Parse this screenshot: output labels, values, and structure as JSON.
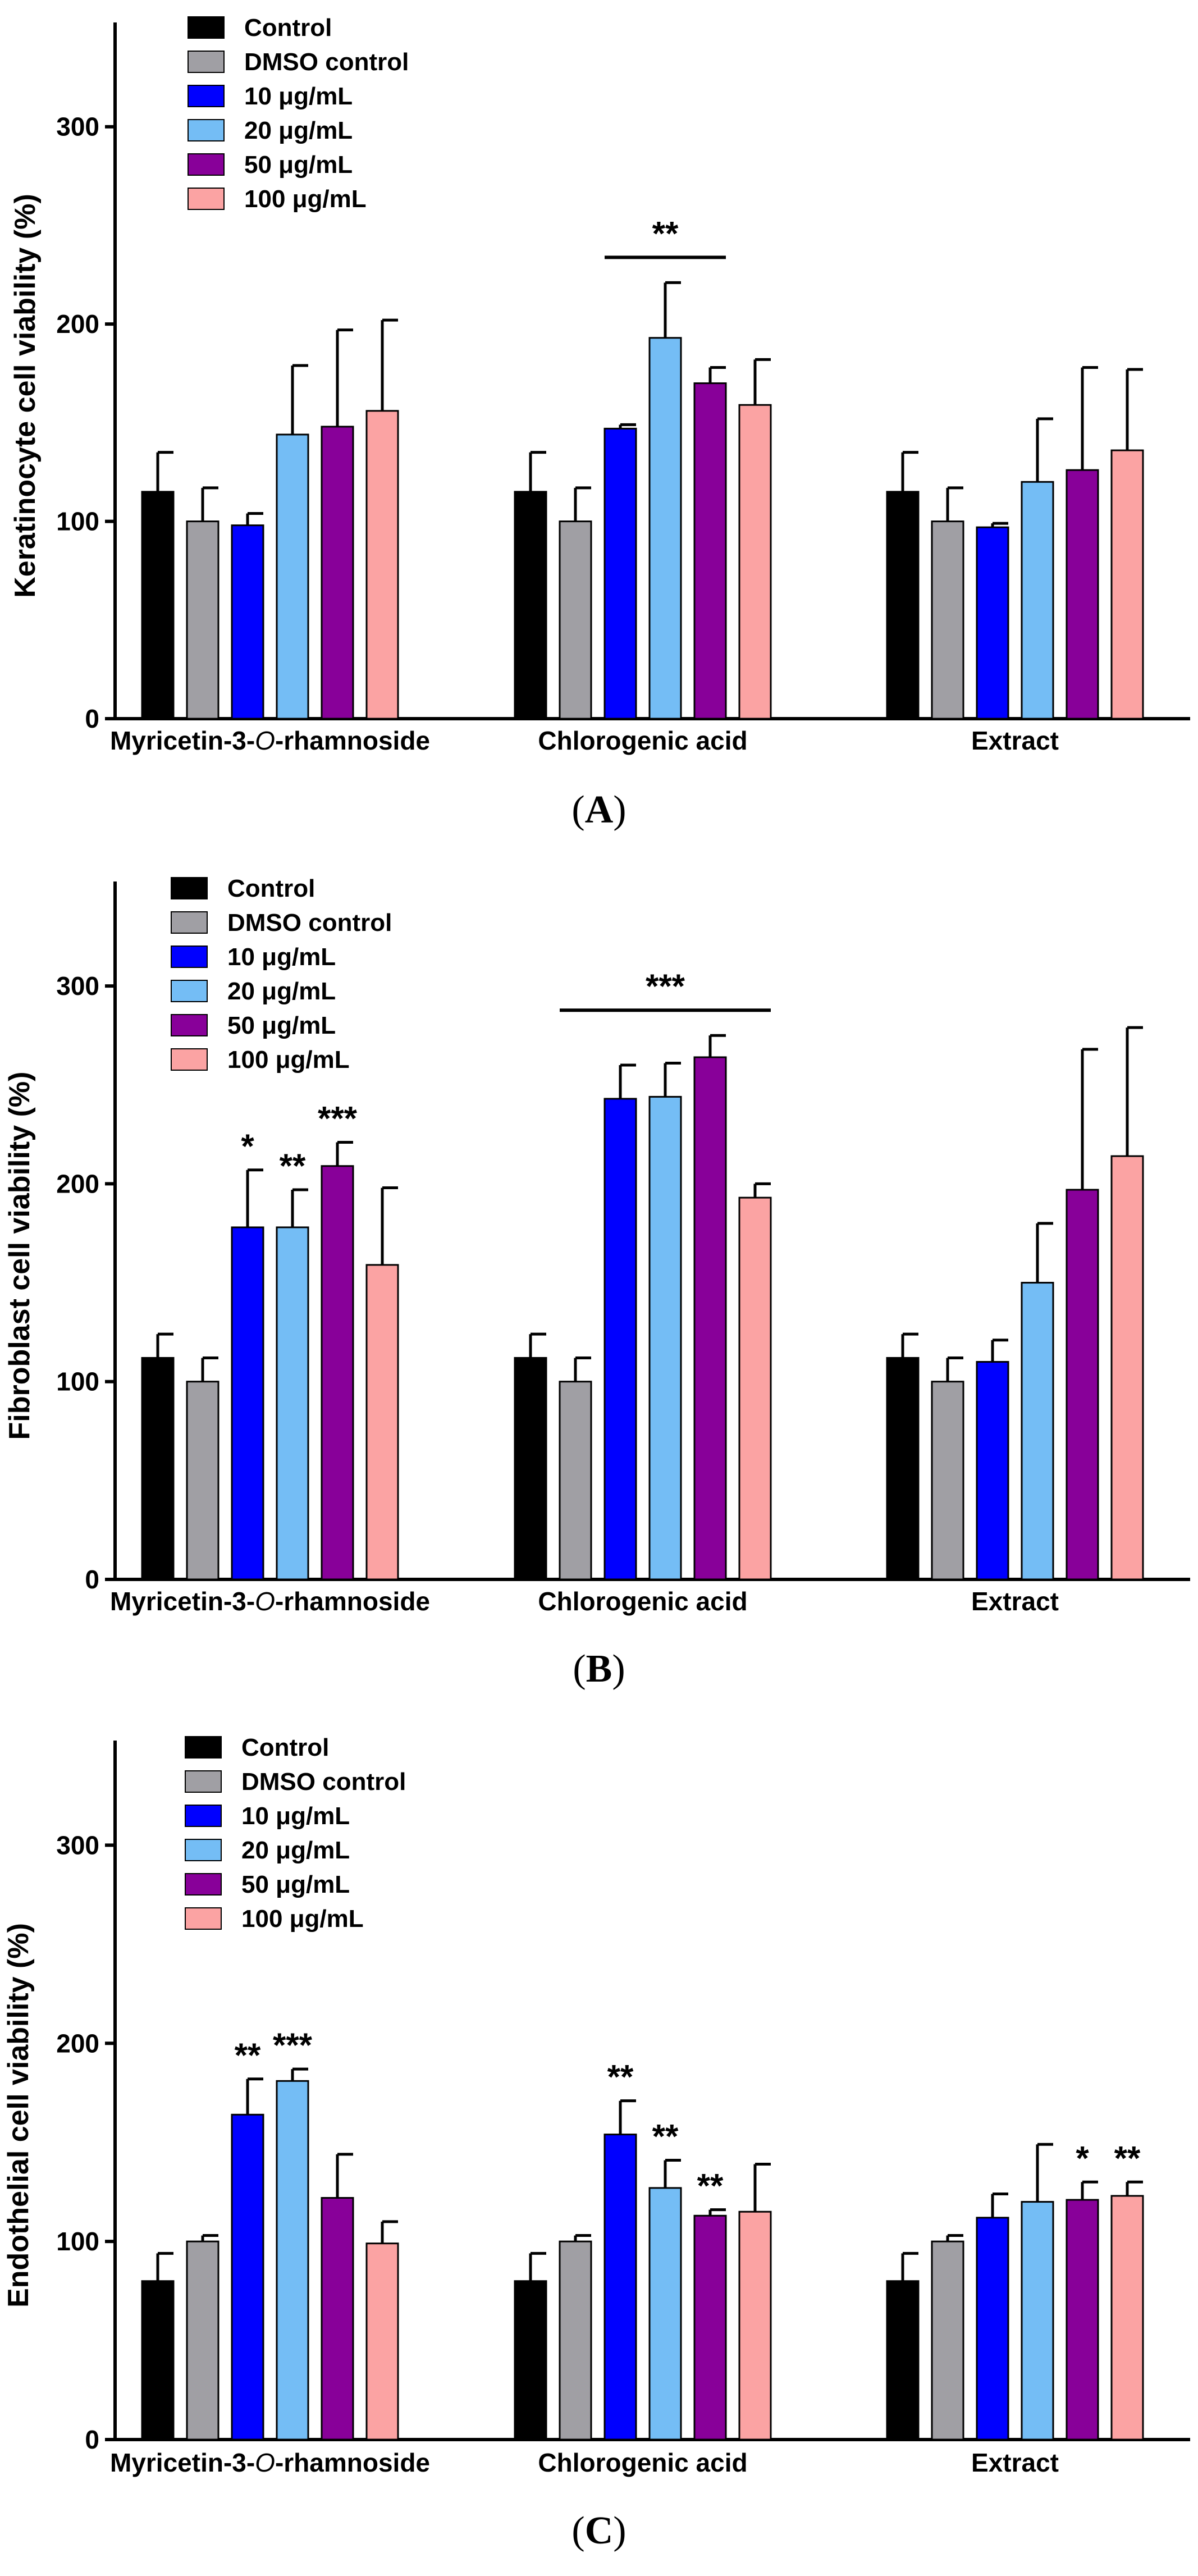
{
  "figure": {
    "panel_labels": [
      "(A)",
      "(B)",
      "(C)"
    ]
  },
  "chart_data": [
    {
      "type": "bar",
      "panel": "(A)",
      "title": "",
      "xlabel": "",
      "ylabel": "Keratinocyte cell viability (%)",
      "ylim": [
        0,
        350
      ],
      "yticks": [
        0,
        100,
        200,
        300
      ],
      "categories": [
        "Myricetin-3-O-rhamnoside",
        "Chlorogenic acid",
        "Extract"
      ],
      "series": [
        {
          "name": "Control",
          "color": "#000000",
          "values": [
            115,
            115,
            115
          ],
          "errors": [
            20,
            20,
            20
          ],
          "sig": [
            "",
            "",
            ""
          ]
        },
        {
          "name": "DMSO control",
          "color": "#a09fa4",
          "values": [
            100,
            100,
            100
          ],
          "errors": [
            17,
            17,
            17
          ],
          "sig": [
            "",
            "",
            ""
          ]
        },
        {
          "name": "10 μg/mL",
          "color": "#0000ff",
          "values": [
            98,
            147,
            97
          ],
          "errors": [
            6,
            2,
            2
          ],
          "sig": [
            "",
            "",
            ""
          ]
        },
        {
          "name": "20 μg/mL",
          "color": "#74bdf5",
          "values": [
            144,
            193,
            120
          ],
          "errors": [
            35,
            28,
            32
          ],
          "sig": [
            "",
            "",
            ""
          ]
        },
        {
          "name": "50 μg/mL",
          "color": "#880099",
          "values": [
            148,
            170,
            126
          ],
          "errors": [
            49,
            8,
            52
          ],
          "sig": [
            "",
            "",
            ""
          ]
        },
        {
          "name": "100 μg/mL",
          "color": "#fba3a3",
          "values": [
            156,
            159,
            136
          ],
          "errors": [
            46,
            23,
            41
          ],
          "sig": [
            "",
            "",
            ""
          ]
        }
      ],
      "group_significance": [
        {
          "category": 1,
          "label": "**",
          "from_series": 2,
          "to_series": 4
        }
      ]
    },
    {
      "type": "bar",
      "panel": "(B)",
      "title": "",
      "xlabel": "",
      "ylabel": "Fibroblast cell viability (%)",
      "ylim": [
        0,
        350
      ],
      "yticks": [
        0,
        100,
        200,
        300
      ],
      "categories": [
        "Myricetin-3-O-rhamnoside",
        "Chlorogenic acid",
        "Extract"
      ],
      "series": [
        {
          "name": "Control",
          "color": "#000000",
          "values": [
            112,
            112,
            112
          ],
          "errors": [
            12,
            12,
            12
          ],
          "sig": [
            "",
            "",
            ""
          ]
        },
        {
          "name": "DMSO control",
          "color": "#a09fa4",
          "values": [
            100,
            100,
            100
          ],
          "errors": [
            12,
            12,
            12
          ],
          "sig": [
            "",
            "",
            ""
          ]
        },
        {
          "name": "10 μg/mL",
          "color": "#0000ff",
          "values": [
            178,
            243,
            110
          ],
          "errors": [
            29,
            17,
            11
          ],
          "sig": [
            "*",
            "",
            ""
          ]
        },
        {
          "name": "20 μg/mL",
          "color": "#74bdf5",
          "values": [
            178,
            244,
            150
          ],
          "errors": [
            19,
            17,
            30
          ],
          "sig": [
            "**",
            "",
            ""
          ]
        },
        {
          "name": "50 μg/mL",
          "color": "#880099",
          "values": [
            209,
            264,
            197
          ],
          "errors": [
            12,
            11,
            71
          ],
          "sig": [
            "***",
            "",
            ""
          ]
        },
        {
          "name": "100 μg/mL",
          "color": "#fba3a3",
          "values": [
            159,
            193,
            214
          ],
          "errors": [
            39,
            7,
            65
          ],
          "sig": [
            "",
            "",
            ""
          ]
        }
      ],
      "group_significance": [
        {
          "category": 1,
          "label": "***",
          "from_series": 1,
          "to_series": 5
        }
      ]
    },
    {
      "type": "bar",
      "panel": "(C)",
      "title": "",
      "xlabel": "",
      "ylabel": "Endothelial cell viability (%)",
      "ylim": [
        0,
        350
      ],
      "yticks": [
        0,
        100,
        200,
        300
      ],
      "categories": [
        "Myricetin-3-O-rhamnoside",
        "Chlorogenic acid",
        "Extract"
      ],
      "series": [
        {
          "name": "Control",
          "color": "#000000",
          "values": [
            80,
            80,
            80
          ],
          "errors": [
            14,
            14,
            14
          ],
          "sig": [
            "",
            "",
            ""
          ]
        },
        {
          "name": "DMSO control",
          "color": "#a09fa4",
          "values": [
            100,
            100,
            100
          ],
          "errors": [
            3,
            3,
            3
          ],
          "sig": [
            "",
            "",
            ""
          ]
        },
        {
          "name": "10 μg/mL",
          "color": "#0000ff",
          "values": [
            164,
            154,
            112
          ],
          "errors": [
            18,
            17,
            12
          ],
          "sig": [
            "**",
            "**",
            ""
          ]
        },
        {
          "name": "20 μg/mL",
          "color": "#74bdf5",
          "values": [
            181,
            127,
            120
          ],
          "errors": [
            6,
            14,
            29
          ],
          "sig": [
            "***",
            "**",
            ""
          ]
        },
        {
          "name": "50 μg/mL",
          "color": "#880099",
          "values": [
            122,
            113,
            121
          ],
          "errors": [
            22,
            3,
            9
          ],
          "sig": [
            "",
            "**",
            "*"
          ]
        },
        {
          "name": "100 μg/mL",
          "color": "#fba3a3",
          "values": [
            99,
            115,
            123
          ],
          "errors": [
            11,
            24,
            7
          ],
          "sig": [
            "",
            "",
            "**"
          ]
        }
      ],
      "group_significance": []
    }
  ]
}
